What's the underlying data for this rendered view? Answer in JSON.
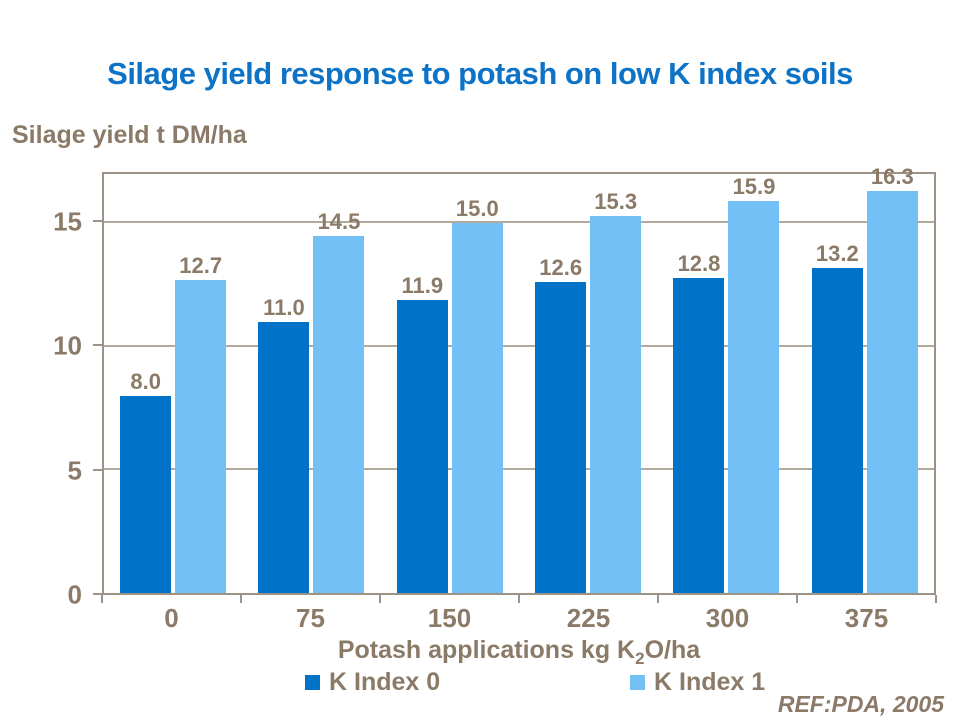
{
  "chart_data": {
    "type": "bar",
    "title": "Silage yield response to potash on low K index soils",
    "ylabel": "Silage yield t DM/ha",
    "xlabel": "Potash applications kg K2O/ha",
    "xlabel_parts": {
      "pre": "Potash applications kg K",
      "sub": "2",
      "post": "O/ha"
    },
    "categories": [
      "0",
      "75",
      "150",
      "225",
      "300",
      "375"
    ],
    "series": [
      {
        "name": "K Index 0",
        "color": "#0073c8",
        "values": [
          8.0,
          11.0,
          11.9,
          12.6,
          12.8,
          13.2
        ],
        "labels": [
          "8.0",
          "11.0",
          "11.9",
          "12.6",
          "12.8",
          "13.2"
        ]
      },
      {
        "name": "K Index 1",
        "color": "#73c0f7",
        "values": [
          12.7,
          14.5,
          15.0,
          15.3,
          15.9,
          16.3
        ],
        "labels": [
          "12.7",
          "14.5",
          "15.0",
          "15.3",
          "15.9",
          "16.3"
        ]
      }
    ],
    "yticks": [
      0,
      5,
      10,
      15
    ],
    "gridline_values": [
      5,
      10,
      15
    ],
    "ylim": [
      0,
      17
    ],
    "grid": true,
    "legend_position": "bottom",
    "annotation": "REF:PDA, 2005"
  },
  "colors": {
    "title_blue": "#0d73c7",
    "text_brown": "#8a7a67",
    "frame": "#9c9285",
    "gridline": "#b3aa9e",
    "series1": "#0073c8",
    "series2": "#73c0f7",
    "background": "#ffffff"
  }
}
